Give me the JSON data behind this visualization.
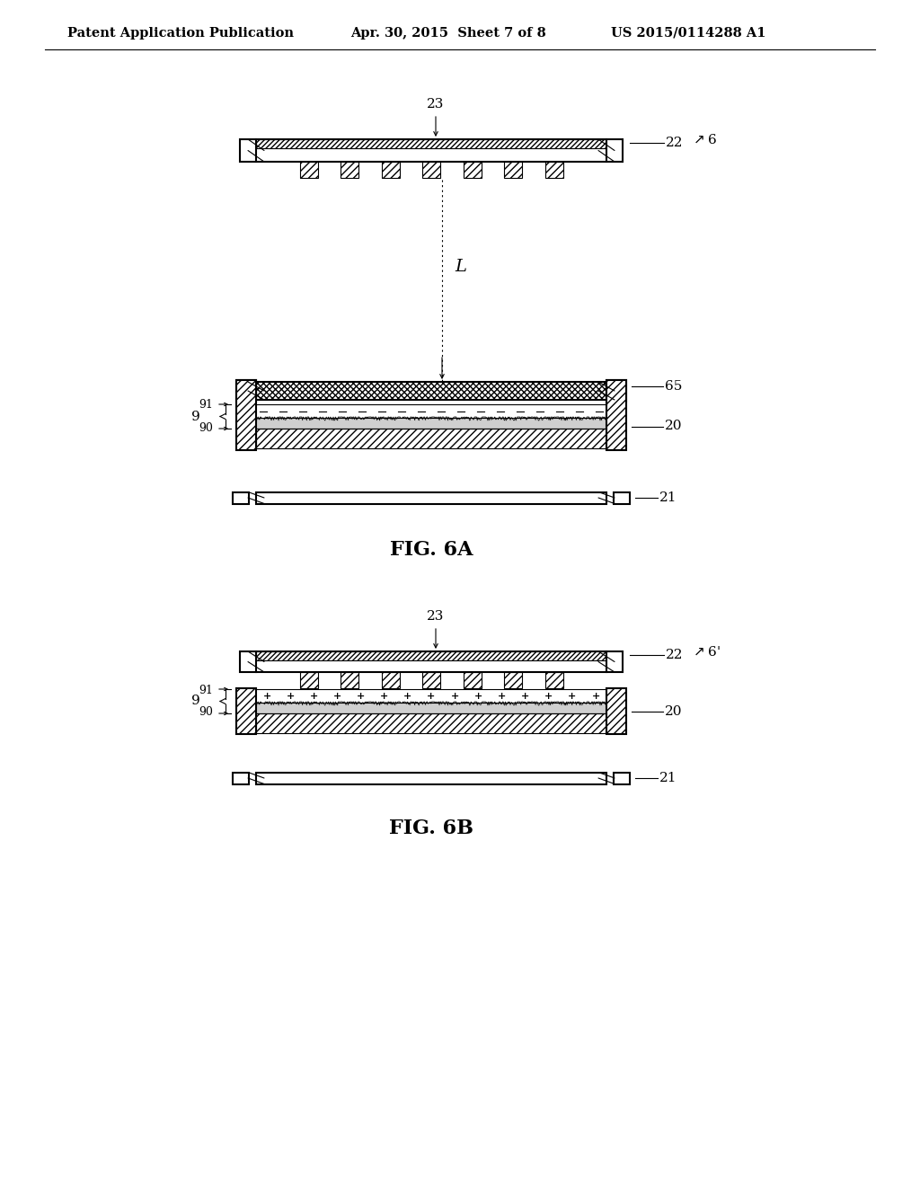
{
  "title_left": "Patent Application Publication",
  "title_mid": "Apr. 30, 2015  Sheet 7 of 8",
  "title_right": "US 2015/0114288 A1",
  "fig6a_label": "FIG. 6A",
  "fig6b_label": "FIG. 6B",
  "bg_color": "#ffffff",
  "line_color": "#000000"
}
